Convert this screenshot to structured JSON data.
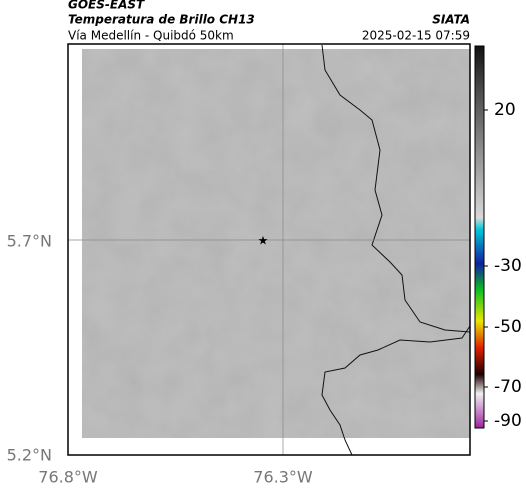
{
  "header": {
    "title": "GOES-EAST",
    "subtitle": "Temperatura de Brillo CH13",
    "location": "Vía Medellín - Quibdó 50km",
    "source": "SIATA",
    "datetime": "2025-02-15 07:59"
  },
  "map": {
    "lat_labels": [
      "5.7°N",
      "5.2°N"
    ],
    "lon_labels": [
      "76.8°W",
      "76.3°W"
    ]
  },
  "colorbar": {
    "ticks": [
      20,
      -30,
      -50,
      -70,
      -90
    ]
  }
}
